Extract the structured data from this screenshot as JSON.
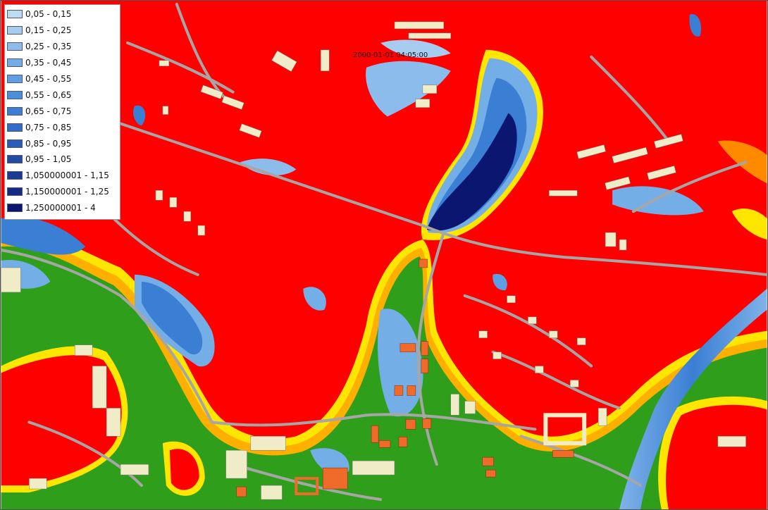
{
  "timestamp": "2000-01-01 04:05:00",
  "legend": [
    {
      "label": "0,05 - 0,15",
      "color": "#bcdcf2"
    },
    {
      "label": "0,15 - 0,25",
      "color": "#a6cdef"
    },
    {
      "label": "0,25 - 0,35",
      "color": "#8bbceb"
    },
    {
      "label": "0,35 - 0,45",
      "color": "#74aee6"
    },
    {
      "label": "0,45 - 0,55",
      "color": "#5d9fe2"
    },
    {
      "label": "0,55 - 0,65",
      "color": "#4a8fdc"
    },
    {
      "label": "0,65 - 0,75",
      "color": "#3a7fd4"
    },
    {
      "label": "0,75 - 0,85",
      "color": "#2f6ec8"
    },
    {
      "label": "0,85 - 0,95",
      "color": "#285cb8"
    },
    {
      "label": "0,95 - 1,05",
      "color": "#224ba6"
    },
    {
      "label": "1,050000001 - 1,15",
      "color": "#1b3a95"
    },
    {
      "label": "1,150000001 - 1,25",
      "color": "#132a86"
    },
    {
      "label": "1,250000001 - 4",
      "color": "#0a1670"
    }
  ],
  "colors": {
    "high_ground": "#ff0000",
    "transition_orange": "#ff8a00",
    "transition_yellow": "#ffe600",
    "low_ground": "#2f9e1a",
    "road": "#a6a6a6",
    "building": "#f0ecc8",
    "flooded_building": "#f06a2a"
  }
}
